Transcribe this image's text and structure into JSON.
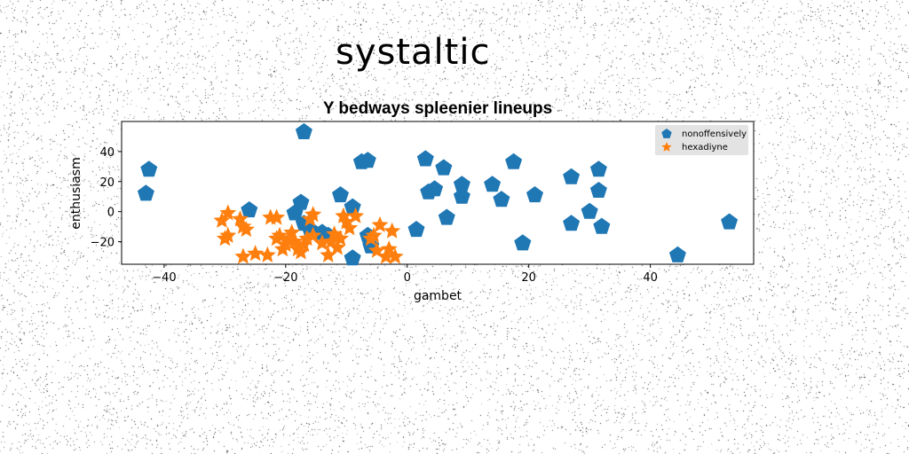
{
  "heading": "systaltic",
  "colors": {
    "series1": "#1f77b4",
    "series2": "#ff7f0e",
    "legend_bg": "#e0e0e0"
  },
  "chart_data": {
    "type": "scatter",
    "title": "Y bedways spleenier lineups",
    "xlabel": "gambet",
    "ylabel": "enthusiasm",
    "xlim": [
      -47,
      57
    ],
    "ylim": [
      -35,
      60
    ],
    "xticks": [
      -40,
      -20,
      0,
      20,
      40
    ],
    "yticks": [
      -20,
      0,
      20,
      40
    ],
    "grid": false,
    "legend_position": "top-right",
    "series": [
      {
        "name": "nonoffensively",
        "marker": "pentagon",
        "points": [
          [
            -17,
            53
          ],
          [
            -42.5,
            28
          ],
          [
            -43,
            12
          ],
          [
            -26,
            1
          ],
          [
            -17.5,
            6
          ],
          [
            -18.5,
            -1
          ],
          [
            -17,
            -8
          ],
          [
            -16,
            -12
          ],
          [
            -14,
            -14
          ],
          [
            -13,
            -16
          ],
          [
            -11,
            11
          ],
          [
            -9,
            3
          ],
          [
            -9,
            -31
          ],
          [
            -7.5,
            33
          ],
          [
            -6.5,
            34
          ],
          [
            -6.5,
            -16
          ],
          [
            -6,
            -23
          ],
          [
            3,
            35
          ],
          [
            3.5,
            13
          ],
          [
            4.5,
            15
          ],
          [
            6,
            29
          ],
          [
            6.5,
            -4
          ],
          [
            9,
            18
          ],
          [
            9,
            10
          ],
          [
            1.5,
            -12
          ],
          [
            14,
            18
          ],
          [
            15.5,
            8
          ],
          [
            17.5,
            33
          ],
          [
            19,
            -21
          ],
          [
            21,
            11
          ],
          [
            27,
            23
          ],
          [
            27,
            -8
          ],
          [
            30,
            0
          ],
          [
            31.5,
            28
          ],
          [
            31.5,
            14
          ],
          [
            32,
            -10
          ],
          [
            44.5,
            -29
          ],
          [
            53,
            -7
          ]
        ]
      },
      {
        "name": "hexadiyne",
        "marker": "star",
        "points": [
          [
            -30.5,
            -6
          ],
          [
            -30,
            -18
          ],
          [
            -29.5,
            -16
          ],
          [
            -29.5,
            -1
          ],
          [
            -27.5,
            -5
          ],
          [
            -27,
            -10
          ],
          [
            -26.5,
            -12
          ],
          [
            -27,
            -30
          ],
          [
            -25,
            -28
          ],
          [
            -23,
            -29
          ],
          [
            -22.5,
            -4
          ],
          [
            -21.5,
            -4
          ],
          [
            -21.5,
            -18
          ],
          [
            -21,
            -16
          ],
          [
            -20.5,
            -25
          ],
          [
            -20,
            -22
          ],
          [
            -19.5,
            -18
          ],
          [
            -19,
            -14
          ],
          [
            -18.5,
            -20
          ],
          [
            -18,
            -25
          ],
          [
            -17.5,
            -27
          ],
          [
            -17,
            -22
          ],
          [
            -16.5,
            -18
          ],
          [
            -16,
            -5
          ],
          [
            -15.5,
            -16
          ],
          [
            -15.5,
            -2
          ],
          [
            -14,
            -21
          ],
          [
            -13,
            -29
          ],
          [
            -12.5,
            -20
          ],
          [
            -12,
            -15
          ],
          [
            -11.5,
            -24
          ],
          [
            -11,
            -18
          ],
          [
            -10.5,
            -3
          ],
          [
            -10,
            -7
          ],
          [
            -9.5,
            -11
          ],
          [
            -8.5,
            -3
          ],
          [
            -6,
            -18
          ],
          [
            -5.5,
            -16
          ],
          [
            -5,
            -26
          ],
          [
            -4.5,
            -9
          ],
          [
            -3.5,
            -30
          ],
          [
            -3,
            -25
          ],
          [
            -2.5,
            -13
          ],
          [
            -2,
            -30
          ]
        ]
      }
    ]
  }
}
